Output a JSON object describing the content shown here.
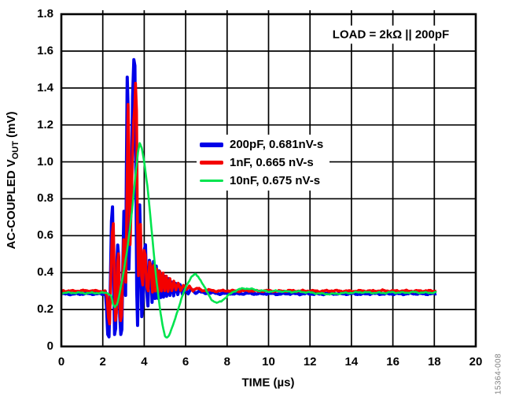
{
  "figure": {
    "code": "15364-008",
    "code_color": "#7f7f7f",
    "background": "#ffffff"
  },
  "annotation": {
    "text": "LOAD = 2kΩ || 200pF"
  },
  "chart_data": {
    "type": "line",
    "title": "",
    "xlabel": "TIME (µs)",
    "ylabel": {
      "main": "AC-COUPLED V",
      "sub": "OUT",
      "unit": " (mV)"
    },
    "xlim": [
      0,
      20
    ],
    "ylim": [
      0,
      1.8
    ],
    "x_tick_step": 2,
    "y_tick_step": 0.2,
    "x_ticks": [
      "0",
      "2",
      "4",
      "6",
      "8",
      "10",
      "12",
      "14",
      "16",
      "18",
      "20"
    ],
    "y_ticks": [
      "0",
      "0.2",
      "0.4",
      "0.6",
      "0.8",
      "1.0",
      "1.2",
      "1.4",
      "1.6",
      "1.8"
    ],
    "grid": true,
    "grid_color": "#000000",
    "axis_color": "#000000",
    "legend_position": "inside-middle-left",
    "noise_amplitude": 0.0055,
    "series": [
      {
        "name": "200pF, 0.681nV-s",
        "color": "#0000E8",
        "line_width": 4,
        "legend_swatch_height": 6,
        "points": [
          [
            0,
            0.285
          ],
          [
            0.6,
            0.284
          ],
          [
            1.2,
            0.286
          ],
          [
            1.8,
            0.285
          ],
          [
            2.05,
            0.285
          ],
          [
            2.12,
            0.3
          ],
          [
            2.18,
            0.22
          ],
          [
            2.24,
            0.065
          ],
          [
            2.3,
            0.05
          ],
          [
            2.36,
            0.3
          ],
          [
            2.42,
            0.68
          ],
          [
            2.47,
            0.755
          ],
          [
            2.52,
            0.4
          ],
          [
            2.57,
            0.065
          ],
          [
            2.62,
            0.1
          ],
          [
            2.67,
            0.42
          ],
          [
            2.72,
            0.55
          ],
          [
            2.77,
            0.48
          ],
          [
            2.82,
            0.16
          ],
          [
            2.87,
            0.065
          ],
          [
            2.92,
            0.09
          ],
          [
            2.97,
            0.45
          ],
          [
            3.02,
            0.73
          ],
          [
            3.06,
            0.52
          ],
          [
            3.1,
            0.28
          ],
          [
            3.14,
            0.95
          ],
          [
            3.18,
            1.46
          ],
          [
            3.22,
            1.3
          ],
          [
            3.26,
            0.42
          ],
          [
            3.3,
            0.6
          ],
          [
            3.34,
            0.95
          ],
          [
            3.38,
            0.8
          ],
          [
            3.44,
            1.35
          ],
          [
            3.5,
            1.55
          ],
          [
            3.55,
            1.52
          ],
          [
            3.6,
            0.9
          ],
          [
            3.64,
            0.3
          ],
          [
            3.68,
            0.115
          ],
          [
            3.73,
            0.5
          ],
          [
            3.78,
            0.77
          ],
          [
            3.83,
            0.55
          ],
          [
            3.88,
            0.16
          ],
          [
            3.94,
            0.25
          ],
          [
            4.0,
            0.52
          ],
          [
            4.06,
            0.55
          ],
          [
            4.12,
            0.3
          ],
          [
            4.18,
            0.22
          ],
          [
            4.25,
            0.47
          ],
          [
            4.32,
            0.44
          ],
          [
            4.38,
            0.24
          ],
          [
            4.45,
            0.46
          ],
          [
            4.52,
            0.26
          ],
          [
            4.58,
            0.43
          ],
          [
            4.65,
            0.26
          ],
          [
            4.72,
            0.41
          ],
          [
            4.79,
            0.265
          ],
          [
            4.86,
            0.395
          ],
          [
            4.93,
            0.27
          ],
          [
            5.0,
            0.38
          ],
          [
            5.08,
            0.27
          ],
          [
            5.16,
            0.365
          ],
          [
            5.24,
            0.275
          ],
          [
            5.32,
            0.35
          ],
          [
            5.42,
            0.278
          ],
          [
            5.52,
            0.34
          ],
          [
            5.62,
            0.28
          ],
          [
            5.73,
            0.33
          ],
          [
            5.85,
            0.283
          ],
          [
            5.98,
            0.32
          ],
          [
            6.12,
            0.285
          ],
          [
            6.28,
            0.31
          ],
          [
            6.45,
            0.29
          ],
          [
            6.65,
            0.3
          ],
          [
            6.9,
            0.288
          ],
          [
            7.2,
            0.292
          ],
          [
            7.6,
            0.286
          ],
          [
            8.0,
            0.288
          ],
          [
            8.5,
            0.285
          ],
          [
            9.0,
            0.288
          ],
          [
            9.5,
            0.285
          ],
          [
            10,
            0.287
          ],
          [
            10.5,
            0.284
          ],
          [
            11,
            0.287
          ],
          [
            11.5,
            0.285
          ],
          [
            12,
            0.286
          ],
          [
            12.5,
            0.284
          ],
          [
            13,
            0.287
          ],
          [
            13.5,
            0.285
          ],
          [
            14,
            0.286
          ],
          [
            14.5,
            0.284
          ],
          [
            15,
            0.287
          ],
          [
            15.5,
            0.285
          ],
          [
            16,
            0.286
          ],
          [
            16.5,
            0.285
          ],
          [
            17,
            0.287
          ],
          [
            17.5,
            0.285
          ],
          [
            18.1,
            0.286
          ]
        ]
      },
      {
        "name": "1nF, 0.665 nV-s",
        "color": "#F40000",
        "line_width": 3.6,
        "legend_swatch_height": 5,
        "points": [
          [
            0,
            0.301
          ],
          [
            0.6,
            0.3
          ],
          [
            1.2,
            0.302
          ],
          [
            1.8,
            0.3
          ],
          [
            2.1,
            0.298
          ],
          [
            2.2,
            0.27
          ],
          [
            2.27,
            0.16
          ],
          [
            2.33,
            0.12
          ],
          [
            2.4,
            0.42
          ],
          [
            2.46,
            0.62
          ],
          [
            2.51,
            0.67
          ],
          [
            2.56,
            0.38
          ],
          [
            2.61,
            0.14
          ],
          [
            2.66,
            0.18
          ],
          [
            2.71,
            0.45
          ],
          [
            2.76,
            0.5
          ],
          [
            2.81,
            0.28
          ],
          [
            2.86,
            0.14
          ],
          [
            2.91,
            0.17
          ],
          [
            2.96,
            0.38
          ],
          [
            3.01,
            0.58
          ],
          [
            3.06,
            0.48
          ],
          [
            3.11,
            0.35
          ],
          [
            3.16,
            0.75
          ],
          [
            3.22,
            1.31
          ],
          [
            3.27,
            1.05
          ],
          [
            3.32,
            0.55
          ],
          [
            3.37,
            0.75
          ],
          [
            3.43,
            1.02
          ],
          [
            3.49,
            1.22
          ],
          [
            3.54,
            1.3
          ],
          [
            3.58,
            1.43
          ],
          [
            3.63,
            1.28
          ],
          [
            3.67,
            0.7
          ],
          [
            3.72,
            0.38
          ],
          [
            3.77,
            0.62
          ],
          [
            3.82,
            0.66
          ],
          [
            3.87,
            0.38
          ],
          [
            3.93,
            0.33
          ],
          [
            3.99,
            0.52
          ],
          [
            4.05,
            0.5
          ],
          [
            4.12,
            0.33
          ],
          [
            4.19,
            0.3
          ],
          [
            4.26,
            0.46
          ],
          [
            4.33,
            0.43
          ],
          [
            4.4,
            0.29
          ],
          [
            4.47,
            0.44
          ],
          [
            4.54,
            0.3
          ],
          [
            4.61,
            0.42
          ],
          [
            4.68,
            0.295
          ],
          [
            4.75,
            0.41
          ],
          [
            4.83,
            0.3
          ],
          [
            4.91,
            0.395
          ],
          [
            4.99,
            0.3
          ],
          [
            5.07,
            0.38
          ],
          [
            5.15,
            0.3
          ],
          [
            5.24,
            0.37
          ],
          [
            5.33,
            0.302
          ],
          [
            5.43,
            0.355
          ],
          [
            5.53,
            0.303
          ],
          [
            5.64,
            0.345
          ],
          [
            5.76,
            0.305
          ],
          [
            5.89,
            0.335
          ],
          [
            6.03,
            0.305
          ],
          [
            6.18,
            0.325
          ],
          [
            6.35,
            0.305
          ],
          [
            6.55,
            0.315
          ],
          [
            6.8,
            0.303
          ],
          [
            7.1,
            0.305
          ],
          [
            7.5,
            0.3
          ],
          [
            8.0,
            0.302
          ],
          [
            8.5,
            0.3
          ],
          [
            9.0,
            0.303
          ],
          [
            9.5,
            0.3
          ],
          [
            10,
            0.302
          ],
          [
            10.5,
            0.299
          ],
          [
            11,
            0.302
          ],
          [
            11.5,
            0.3
          ],
          [
            12,
            0.301
          ],
          [
            12.5,
            0.299
          ],
          [
            13,
            0.302
          ],
          [
            13.5,
            0.3
          ],
          [
            14,
            0.299
          ],
          [
            14.5,
            0.301
          ],
          [
            15,
            0.3
          ],
          [
            15.5,
            0.302
          ],
          [
            16,
            0.3
          ],
          [
            16.5,
            0.301
          ],
          [
            17,
            0.3
          ],
          [
            17.5,
            0.301
          ],
          [
            18.1,
            0.3
          ]
        ]
      },
      {
        "name": "10nF, 0.675 nV-s",
        "color": "#00E44E",
        "line_width": 2.6,
        "legend_swatch_height": 3,
        "points": [
          [
            0,
            0.29
          ],
          [
            0.6,
            0.291
          ],
          [
            1.2,
            0.289
          ],
          [
            1.8,
            0.29
          ],
          [
            2.25,
            0.29
          ],
          [
            2.4,
            0.275
          ],
          [
            2.5,
            0.225
          ],
          [
            2.58,
            0.21
          ],
          [
            2.68,
            0.225
          ],
          [
            2.78,
            0.27
          ],
          [
            2.88,
            0.33
          ],
          [
            3.0,
            0.4
          ],
          [
            3.15,
            0.5
          ],
          [
            3.3,
            0.63
          ],
          [
            3.45,
            0.78
          ],
          [
            3.6,
            0.95
          ],
          [
            3.7,
            1.05
          ],
          [
            3.78,
            1.1
          ],
          [
            3.88,
            1.08
          ],
          [
            4.0,
            1.0
          ],
          [
            4.15,
            0.87
          ],
          [
            4.3,
            0.7
          ],
          [
            4.45,
            0.52
          ],
          [
            4.6,
            0.35
          ],
          [
            4.75,
            0.21
          ],
          [
            4.88,
            0.115
          ],
          [
            5.0,
            0.06
          ],
          [
            5.1,
            0.048
          ],
          [
            5.2,
            0.06
          ],
          [
            5.35,
            0.1
          ],
          [
            5.5,
            0.155
          ],
          [
            5.7,
            0.225
          ],
          [
            5.9,
            0.29
          ],
          [
            6.1,
            0.345
          ],
          [
            6.3,
            0.38
          ],
          [
            6.45,
            0.39
          ],
          [
            6.6,
            0.38
          ],
          [
            6.8,
            0.345
          ],
          [
            7.0,
            0.3
          ],
          [
            7.2,
            0.262
          ],
          [
            7.4,
            0.24
          ],
          [
            7.55,
            0.235
          ],
          [
            7.7,
            0.245
          ],
          [
            7.9,
            0.262
          ],
          [
            8.1,
            0.28
          ],
          [
            8.35,
            0.3
          ],
          [
            8.6,
            0.31
          ],
          [
            8.9,
            0.315
          ],
          [
            9.2,
            0.31
          ],
          [
            9.6,
            0.302
          ],
          [
            10.0,
            0.298
          ],
          [
            10.5,
            0.3
          ],
          [
            11.0,
            0.296
          ],
          [
            11.5,
            0.297
          ],
          [
            12.0,
            0.292
          ],
          [
            12.5,
            0.286
          ],
          [
            13.0,
            0.284
          ],
          [
            13.5,
            0.288
          ],
          [
            14.0,
            0.291
          ],
          [
            14.5,
            0.294
          ],
          [
            15.0,
            0.291
          ],
          [
            15.5,
            0.29
          ],
          [
            16.0,
            0.293
          ],
          [
            16.5,
            0.291
          ],
          [
            17.0,
            0.294
          ],
          [
            17.5,
            0.291
          ],
          [
            18.1,
            0.292
          ]
        ]
      }
    ]
  }
}
